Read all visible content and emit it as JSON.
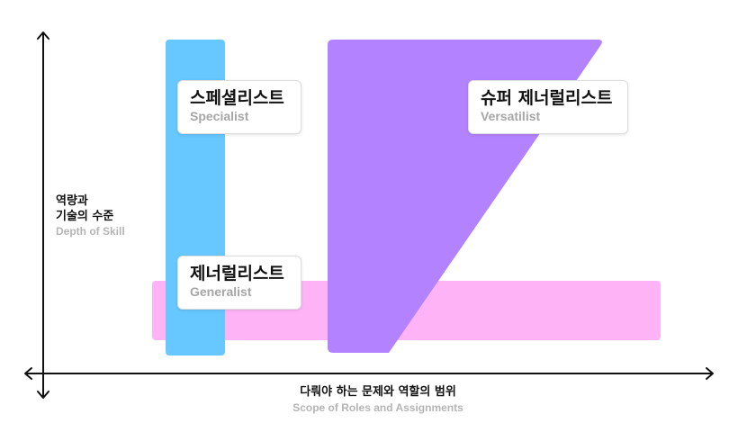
{
  "colors": {
    "specialist": "#66c8ff",
    "generalist": "#ffb3f7",
    "versatilist": "#b383ff",
    "axis": "#111111",
    "subtitle": "#a6a6a6"
  },
  "y_axis": {
    "title_line1": "역량과",
    "title_line2": "기술의 수준",
    "subtitle": "Depth of Skill"
  },
  "x_axis": {
    "title": "다뤄야 하는 문제와 역할의 범위",
    "subtitle": "Scope of Roles and Assignments"
  },
  "cards": {
    "specialist": {
      "title": "스페셜리스트",
      "subtitle": "Specialist"
    },
    "versatilist": {
      "title": "슈퍼 제너럴리스트",
      "subtitle": "Versatilist"
    },
    "generalist": {
      "title": "제너럴리스트",
      "subtitle": "Generalist"
    }
  }
}
